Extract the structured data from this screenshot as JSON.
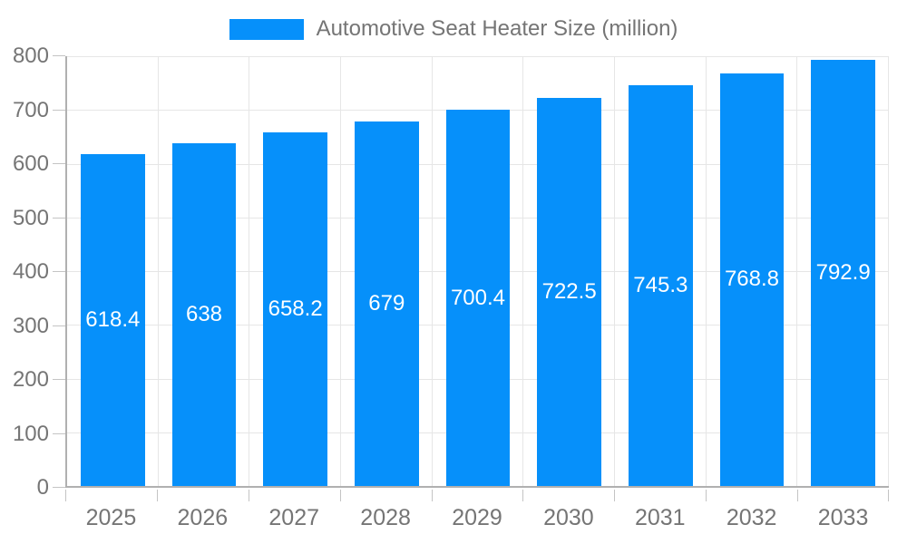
{
  "legend": {
    "label": "Automotive Seat Heater Size (million)"
  },
  "chart_data": {
    "type": "bar",
    "title": "Automotive Seat Heater Size (million)",
    "categories": [
      "2025",
      "2026",
      "2027",
      "2028",
      "2029",
      "2030",
      "2031",
      "2032",
      "2033"
    ],
    "values": [
      618.4,
      638,
      658.2,
      679,
      700.4,
      722.5,
      745.3,
      768.8,
      792.9
    ],
    "value_labels": [
      "618.4",
      "638",
      "658.2",
      "679",
      "700.4",
      "722.5",
      "745.3",
      "768.8",
      "792.9"
    ],
    "xlabel": "",
    "ylabel": "",
    "ylim": [
      0,
      800
    ],
    "ytick_step": 100,
    "ytick_labels": [
      "0",
      "100",
      "200",
      "300",
      "400",
      "500",
      "600",
      "700",
      "800"
    ],
    "grid": true,
    "legend_position": "top",
    "bar_width_fraction": 0.7,
    "colors": {
      "bar": "#0690fa",
      "bar_label": "#ffffff",
      "grid_line": "#e6e6e6",
      "axis_line": "#b0b0b0",
      "tick_line": "#c4c4c4",
      "text": "#757575",
      "background": "#ffffff"
    }
  }
}
